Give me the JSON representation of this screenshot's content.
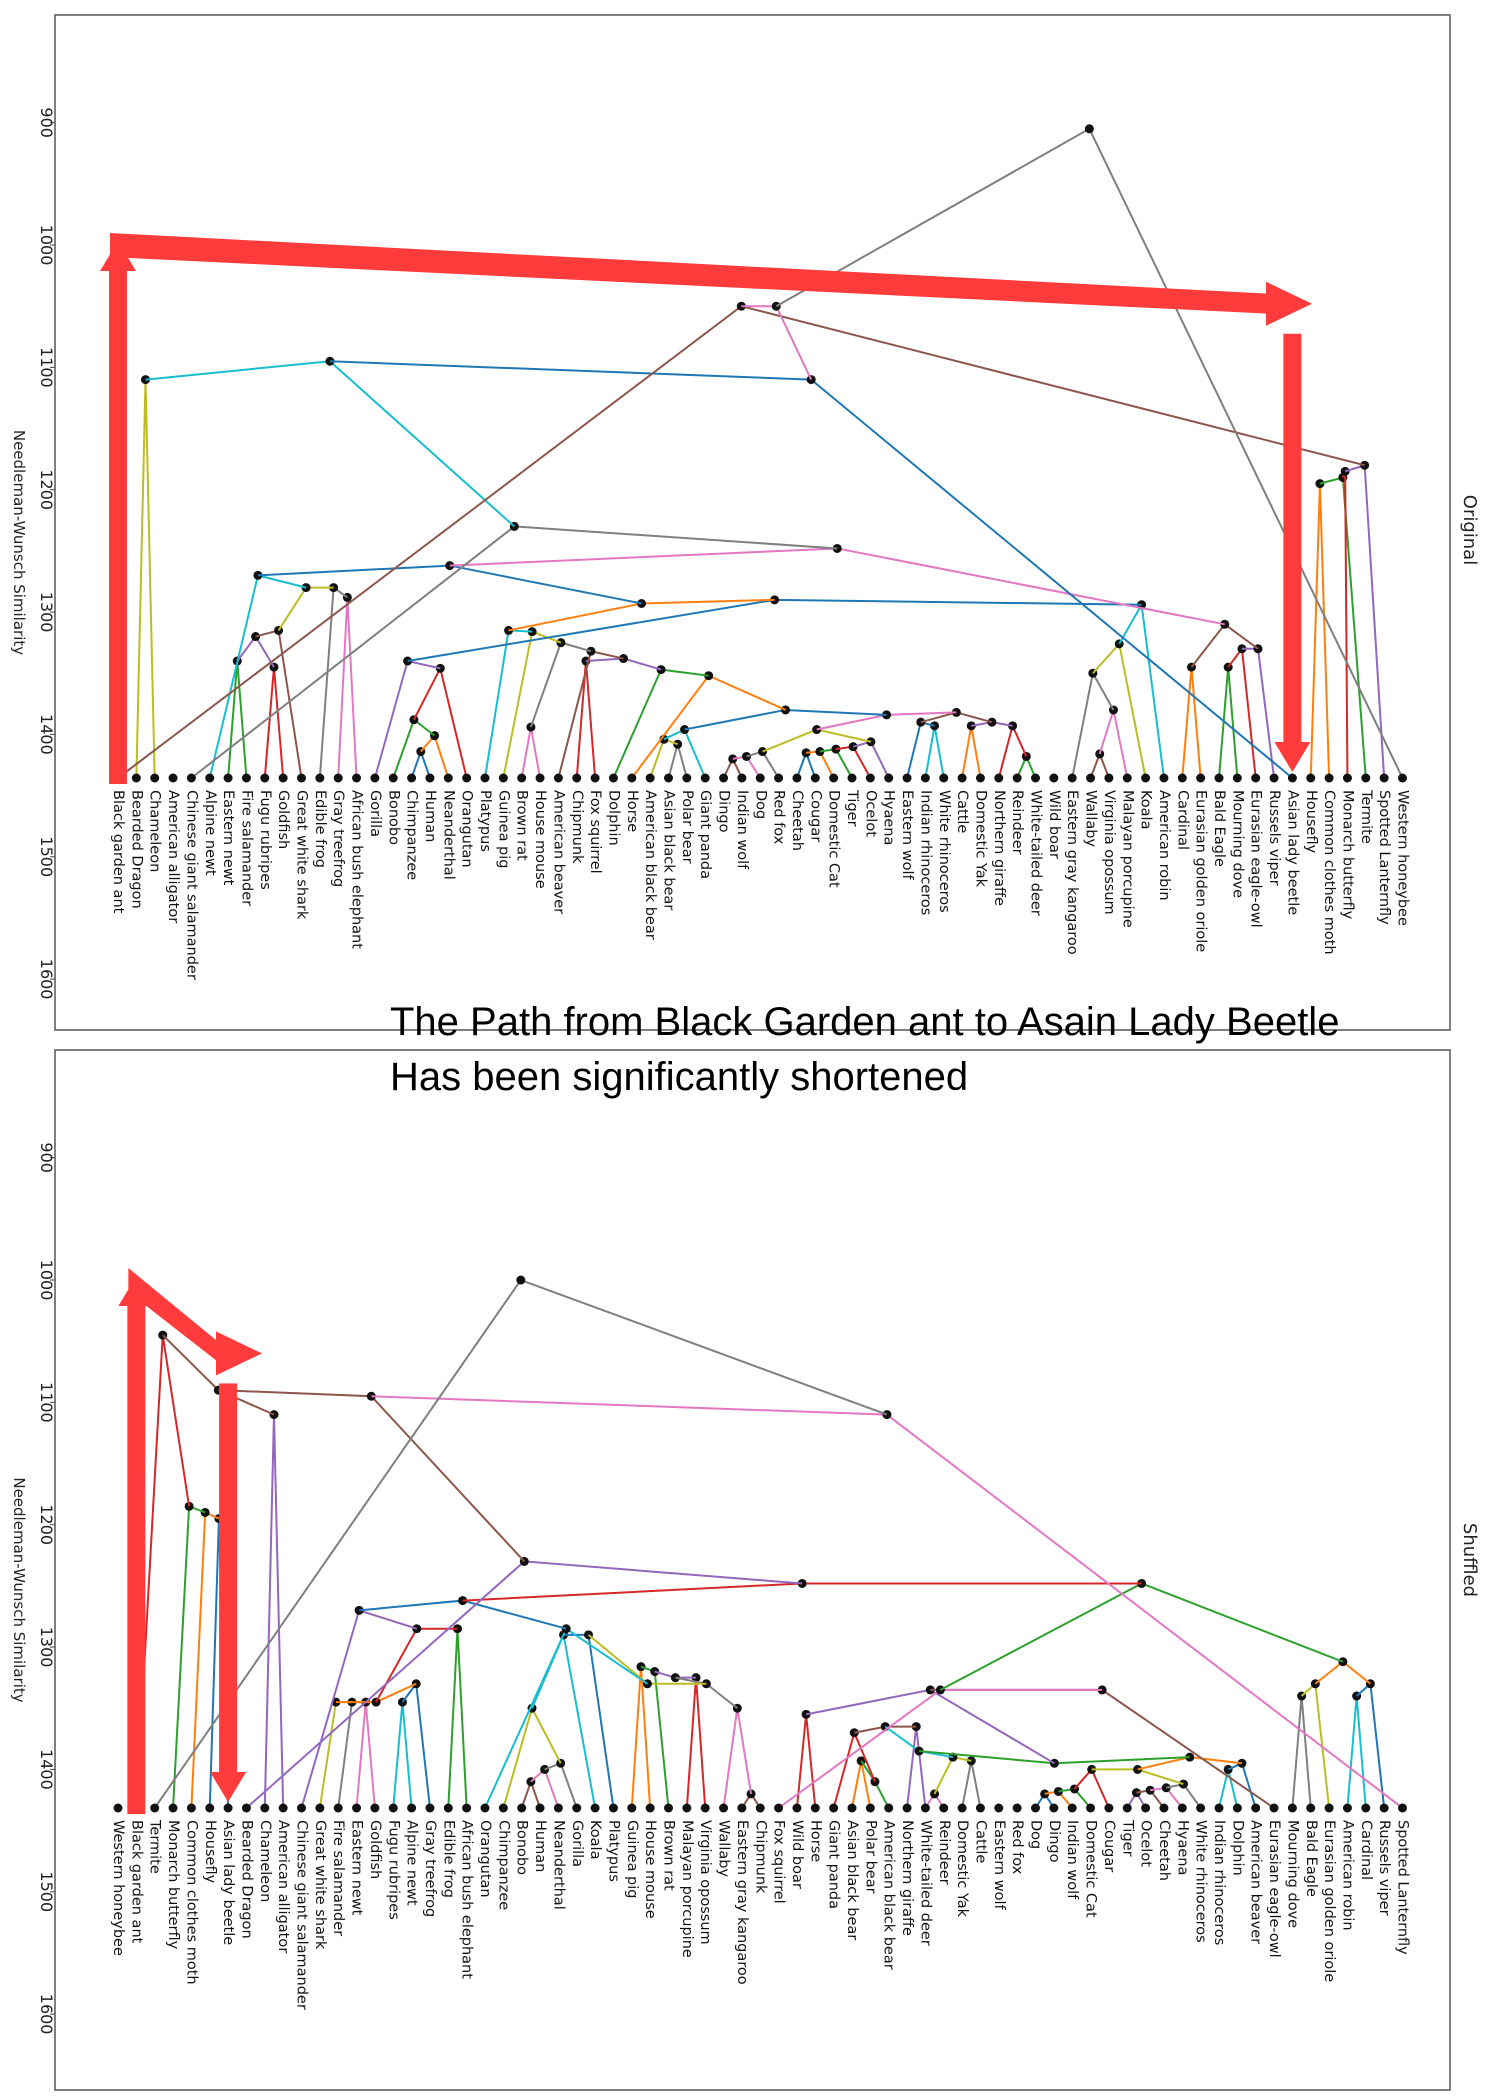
{
  "annotation": {
    "line1": "The Path from Black Garden ant to Asain Lady Beetle",
    "line2": "Has been significantly shortened"
  },
  "colors": {
    "highlight_arrow": "#ff3b3b",
    "palette": [
      "#1f77b4",
      "#ff7f0e",
      "#2ca02c",
      "#d62728",
      "#9467bd",
      "#8c564b",
      "#e377c2",
      "#7f7f7f",
      "#bcbd22",
      "#17becf"
    ]
  },
  "chart_data": [
    {
      "type": "dendrogram",
      "title": "Original",
      "ylabel": "Needleman-Wunsch Similarity",
      "ylim": [
        1675,
        812
      ],
      "yticks": [
        900,
        1000,
        1100,
        1200,
        1300,
        1400,
        1500,
        1600
      ],
      "leaves": [
        "Black garden ant",
        "Bearded Dragon",
        "Chameleon",
        "American alligator",
        "Chinese giant salamander",
        "Alpine newt",
        "Eastern newt",
        "Fire salamander",
        "Fugu rubripes",
        "Goldfish",
        "Great white shark",
        "Edible frog",
        "Gray treefrog",
        "African bush elephant",
        "Gorilla",
        "Bonobo",
        "Chimpanzee",
        "Human",
        "Neanderthal",
        "Orangutan",
        "Platypus",
        "Guinea pig",
        "Brown rat",
        "House mouse",
        "American beaver",
        "Chipmunk",
        "Fox squirrel",
        "Dolphin",
        "Horse",
        "American black bear",
        "Asian black bear",
        "Polar bear",
        "Giant panda",
        "Dingo",
        "Indian wolf",
        "Dog",
        "Red fox",
        "Cheetah",
        "Cougar",
        "Domestic Cat",
        "Tiger",
        "Ocelot",
        "Hyaena",
        "Eastern wolf",
        "Indian rhinoceros",
        "White rhinoceros",
        "Cattle",
        "Domestic Yak",
        "Northern giraffe",
        "Reindeer",
        "White-tailed deer",
        "Wild boar",
        "Eastern gray kangaroo",
        "Wallaby",
        "Virginia opossum",
        "Malayan porcupine",
        "Koala",
        "American robin",
        "Cardinal",
        "Eurasian golden oriole",
        "Bald Eagle",
        "Mourning dove",
        "Eurasian eagle-owl",
        "Russels viper",
        "Asian lady beetle",
        "Housefly",
        "Common clothes moth",
        "Monarch butterfly",
        "Termite",
        "Spotted Lanternfly",
        "Western honeybee"
      ],
      "highlighted_path": [
        "Black garden ant",
        "Asian lady beetle"
      ]
    },
    {
      "type": "dendrogram",
      "title": "Shuffled",
      "ylabel": "Needleman-Wunsch Similarity",
      "ylim": [
        1675,
        812
      ],
      "yticks": [
        900,
        1000,
        1100,
        1200,
        1300,
        1400,
        1500,
        1600
      ],
      "leaves": [
        "Western honeybee",
        "Black garden ant",
        "Termite",
        "Monarch butterfly",
        "Common clothes moth",
        "Housefly",
        "Asian lady beetle",
        "Bearded Dragon",
        "Chameleon",
        "American alligator",
        "Chinese giant salamander",
        "Great white shark",
        "Fire salamander",
        "Eastern newt",
        "Goldfish",
        "Fugu rubripes",
        "Alpine newt",
        "Gray treefrog",
        "Edible frog",
        "African bush elephant",
        "Orangutan",
        "Chimpanzee",
        "Bonobo",
        "Human",
        "Neanderthal",
        "Gorilla",
        "Koala",
        "Platypus",
        "Guinea pig",
        "House mouse",
        "Brown rat",
        "Malayan porcupine",
        "Virginia opossum",
        "Wallaby",
        "Eastern gray kangaroo",
        "Chipmunk",
        "Fox squirrel",
        "Wild boar",
        "Horse",
        "Giant panda",
        "Asian black bear",
        "Polar bear",
        "American black bear",
        "Northern giraffe",
        "White-tailed deer",
        "Reindeer",
        "Domestic Yak",
        "Cattle",
        "Eastern wolf",
        "Red fox",
        "Dog",
        "Dingo",
        "Indian wolf",
        "Domestic Cat",
        "Cougar",
        "Tiger",
        "Ocelot",
        "Cheetah",
        "Hyaena",
        "White rhinoceros",
        "Indian rhinoceros",
        "Dolphin",
        "American beaver",
        "Eurasian eagle-owl",
        "Mourning dove",
        "Bald Eagle",
        "Eurasian golden oriole",
        "American robin",
        "Cardinal",
        "Russels viper",
        "Spotted Lanternfly"
      ],
      "highlighted_path": [
        "Black garden ant",
        "Asian lady beetle"
      ]
    }
  ]
}
